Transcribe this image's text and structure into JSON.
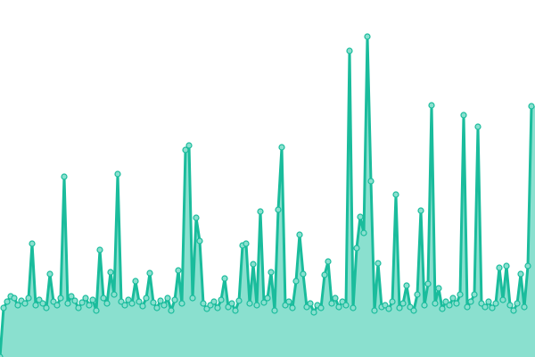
{
  "chart_data": {
    "type": "area",
    "title": "",
    "xlabel": "",
    "ylabel": "",
    "ylim": [
      0,
      400
    ],
    "grid": false,
    "legend": "none",
    "colors": {
      "line": "#1abc9c",
      "fill": "#8ae0cf",
      "marker_fill": "#8ae0cf"
    },
    "values": [
      0,
      55,
      62,
      68,
      66,
      58,
      63,
      60,
      66,
      127,
      58,
      64,
      60,
      55,
      93,
      62,
      58,
      66,
      202,
      60,
      68,
      63,
      55,
      61,
      66,
      58,
      64,
      52,
      120,
      66,
      60,
      95,
      70,
      205,
      62,
      58,
      64,
      60,
      85,
      62,
      57,
      66,
      94,
      61,
      55,
      63,
      58,
      66,
      52,
      64,
      97,
      60,
      232,
      237,
      66,
      156,
      130,
      60,
      54,
      58,
      62,
      55,
      64,
      88,
      56,
      60,
      52,
      63,
      125,
      127,
      60,
      104,
      58,
      163,
      61,
      66,
      95,
      52,
      165,
      235,
      58,
      62,
      55,
      85,
      137,
      93,
      56,
      60,
      50,
      58,
      55,
      92,
      107,
      60,
      66,
      56,
      62,
      58,
      343,
      55,
      122,
      157,
      139,
      359,
      197,
      52,
      105,
      56,
      58,
      54,
      62,
      182,
      55,
      60,
      80,
      56,
      52,
      70,
      164,
      58,
      82,
      282,
      60,
      77,
      54,
      62,
      58,
      66,
      60,
      70,
      271,
      56,
      62,
      70,
      258,
      60,
      56,
      62,
      55,
      60,
      100,
      64,
      102,
      58,
      52,
      60,
      93,
      56,
      102,
      281
    ]
  }
}
